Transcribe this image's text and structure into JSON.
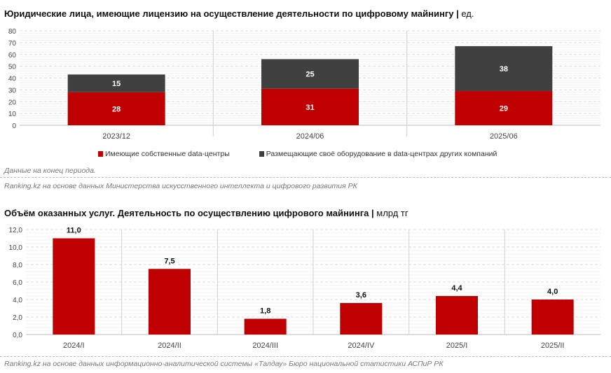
{
  "chart_data": [
    {
      "type": "bar",
      "stacked": true,
      "title": "Юридические лица, имеющие лицензию на осуществление деятельности по цифровому майнингу",
      "unit": "ед.",
      "categories": [
        "2023/12",
        "2024/06",
        "2025/06"
      ],
      "series": [
        {
          "name": "Имеющие собственные data-центры",
          "values": [
            28,
            31,
            29
          ],
          "color": "#c00000"
        },
        {
          "name": "Размещающие своё оборудование в data-центрах других компаний",
          "values": [
            15,
            25,
            38
          ],
          "color": "#404040"
        }
      ],
      "ylim": [
        0,
        80
      ],
      "yticks": [
        "0",
        "10",
        "20",
        "30",
        "40",
        "50",
        "60",
        "70",
        "80"
      ],
      "legend": "bottom"
    },
    {
      "type": "bar",
      "title": "Объём оказанных услуг. Деятельность по осуществлению цифрового майнинга",
      "unit": "млрд тг",
      "categories": [
        "2024/I",
        "2024/II",
        "2024/III",
        "2024/IV",
        "2025/I",
        "2025/II"
      ],
      "values": [
        11.0,
        7.5,
        1.8,
        3.6,
        4.4,
        4.0
      ],
      "labels": [
        "11,0",
        "7,5",
        "1,8",
        "3,6",
        "4,4",
        "4,0"
      ],
      "color": "#c00000",
      "ylim": [
        0,
        12
      ],
      "yticks": [
        "0,0",
        "2,0",
        "4,0",
        "6,0",
        "8,0",
        "10,0",
        "12,0"
      ]
    }
  ],
  "notes": {
    "period": "Данные на конец периода.",
    "source1": "Ranking.kz на основе данных Министерства искусственного интеллекта и цифрового развития РК",
    "source2": "Ranking.kz на основе данных информационно-аналитической системы «Талдау» Бюро национальной статистики АСПиР РК"
  }
}
